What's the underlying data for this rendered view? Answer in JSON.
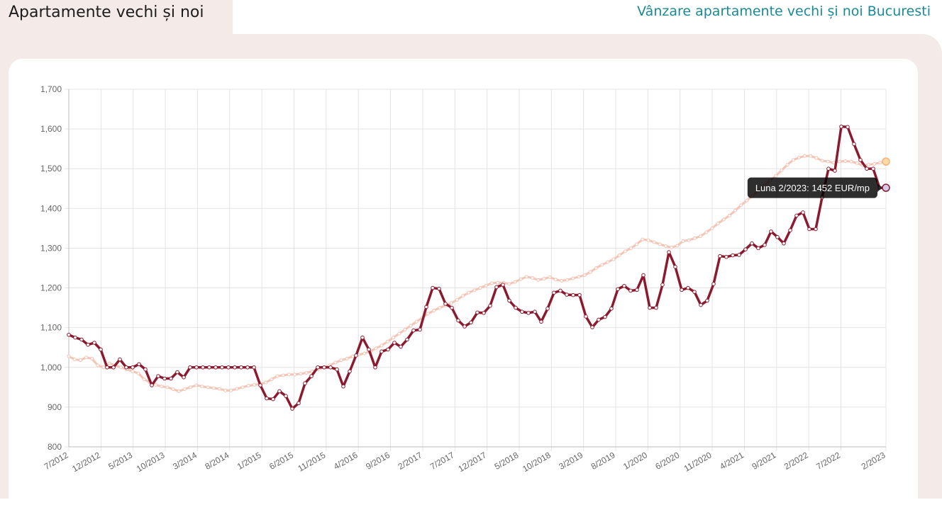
{
  "header": {
    "active_tab": "Apartamente vechi și noi",
    "link": "Vânzare apartamente vechi și noi Bucuresti"
  },
  "colors": {
    "panel_bg": "#f4ebe9",
    "primary_series": "#8b1a2f",
    "trend_series": "#f5c4b5",
    "link": "#1b8a96"
  },
  "chart_data": {
    "type": "line",
    "title": "",
    "xlabel": "",
    "ylabel": "",
    "ylim": [
      800,
      1700
    ],
    "y_ticks": [
      "800",
      "900",
      "1,000",
      "1,100",
      "1,200",
      "1,300",
      "1,400",
      "1,500",
      "1,600",
      "1,700"
    ],
    "x_tick_labels": [
      "7/2012",
      "12/2012",
      "5/2013",
      "10/2013",
      "3/2014",
      "8/2014",
      "1/2015",
      "6/2015",
      "11/2015",
      "4/2016",
      "9/2016",
      "2/2017",
      "7/2017",
      "12/2017",
      "5/2018",
      "10/2018",
      "3/2019",
      "8/2019",
      "1/2020",
      "6/2020",
      "11/2020",
      "4/2021",
      "9/2021",
      "2/2022",
      "7/2022",
      "2/2023"
    ],
    "x_start": "7/2012",
    "x_end": "2/2023",
    "grid": true,
    "tooltip": {
      "text": "Luna 2/2023: 1452 EUR/mp"
    },
    "series": [
      {
        "values": [
          1082,
          1075,
          1070,
          1057,
          1062,
          1045,
          1000,
          1000,
          1020,
          1000,
          1000,
          1008,
          995,
          955,
          978,
          972,
          972,
          988,
          975,
          1000,
          1000,
          1000,
          1000,
          1000,
          1000,
          1000,
          1000,
          1000,
          1000,
          1000,
          955,
          922,
          920,
          940,
          928,
          896,
          910,
          960,
          978,
          1000,
          1000,
          1000,
          995,
          952,
          990,
          1030,
          1075,
          1045,
          1000,
          1040,
          1045,
          1062,
          1052,
          1070,
          1093,
          1095,
          1152,
          1200,
          1198,
          1160,
          1150,
          1118,
          1103,
          1113,
          1138,
          1137,
          1155,
          1202,
          1208,
          1168,
          1150,
          1140,
          1137,
          1140,
          1115,
          1148,
          1188,
          1193,
          1183,
          1182,
          1182,
          1128,
          1101,
          1120,
          1127,
          1148,
          1197,
          1205,
          1193,
          1195,
          1232,
          1150,
          1150,
          1208,
          1290,
          1253,
          1195,
          1200,
          1190,
          1157,
          1168,
          1210,
          1280,
          1278,
          1282,
          1283,
          1297,
          1312,
          1300,
          1308,
          1342,
          1328,
          1312,
          1345,
          1382,
          1390,
          1348,
          1348,
          1428,
          1500,
          1495,
          1606,
          1605,
          1562,
          1522,
          1500,
          1500,
          1452,
          1452
        ]
      },
      {
        "values": [
          1028,
          1020,
          1018,
          1025,
          1022,
          1005,
          1000,
          1010,
          1005,
          1000,
          995,
          990,
          985,
          970,
          962,
          956,
          952,
          950,
          945,
          940,
          945,
          950,
          955,
          952,
          950,
          948,
          946,
          942,
          942,
          946,
          950,
          954,
          956,
          958,
          962,
          970,
          978,
          980,
          982,
          982,
          984,
          986,
          990,
          995,
          1000,
          1005,
          1012,
          1018,
          1022,
          1028,
          1032,
          1035,
          1040,
          1048,
          1055,
          1065,
          1075,
          1085,
          1095,
          1105,
          1115,
          1125,
          1135,
          1143,
          1150,
          1156,
          1162,
          1170,
          1180,
          1188,
          1194,
          1200,
          1206,
          1212,
          1213,
          1213,
          1210,
          1215,
          1222,
          1228,
          1225,
          1220,
          1223,
          1227,
          1221,
          1218,
          1220,
          1224,
          1228,
          1232,
          1240,
          1250,
          1258,
          1265,
          1272,
          1282,
          1292,
          1300,
          1310,
          1322,
          1320,
          1315,
          1310,
          1305,
          1302,
          1306,
          1318,
          1320,
          1325,
          1330,
          1340,
          1350,
          1362,
          1372,
          1382,
          1395,
          1408,
          1420,
          1432,
          1445,
          1458,
          1470,
          1482,
          1496,
          1510,
          1522,
          1528,
          1532,
          1532,
          1527,
          1520,
          1518,
          1515,
          1518,
          1519,
          1518,
          1514,
          1508,
          1510,
          1512,
          1515,
          1518
        ]
      }
    ]
  }
}
